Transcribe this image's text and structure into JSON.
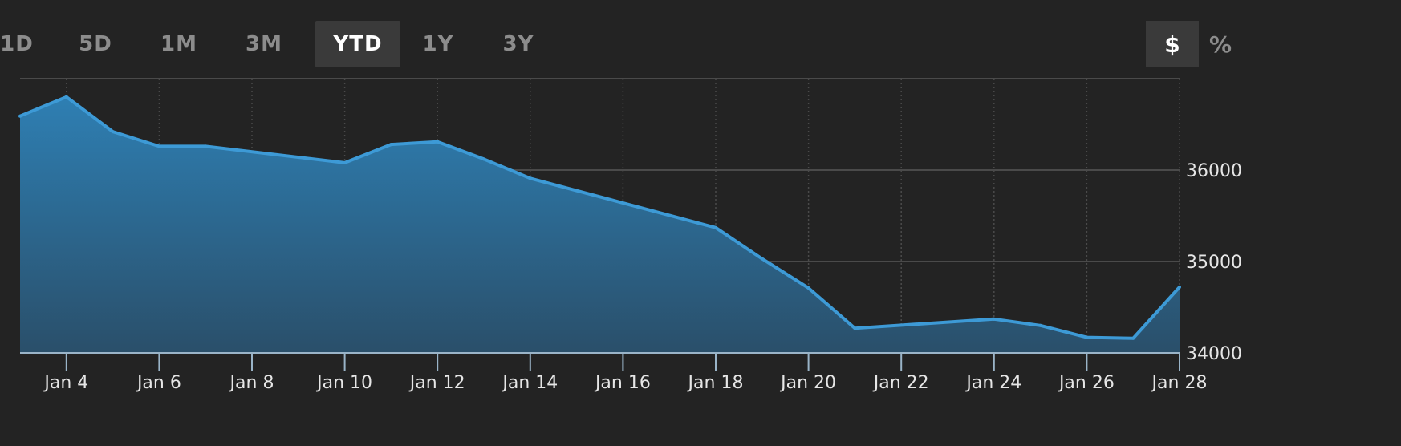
{
  "toolbar": {
    "ranges": [
      {
        "label": "1D",
        "active": false
      },
      {
        "label": "5D",
        "active": false
      },
      {
        "label": "1M",
        "active": false
      },
      {
        "label": "3M",
        "active": false
      },
      {
        "label": "YTD",
        "active": true
      },
      {
        "label": "1Y",
        "active": false
      },
      {
        "label": "3Y",
        "active": false
      }
    ],
    "units": [
      {
        "label": "$",
        "active": true
      },
      {
        "label": "%",
        "active": false
      }
    ]
  },
  "colors": {
    "background": "#232323",
    "line": "#3d9ad6",
    "fill_top": "#2e7fb3",
    "fill_bottom": "#2a4f6a",
    "grid": "#4a4a4a",
    "axis_line": "#9ab4c8"
  },
  "chart_data": {
    "type": "area",
    "title": "",
    "xlabel": "",
    "ylabel": "",
    "x_range": [
      "Jan 3",
      "Jan 28"
    ],
    "ylim": [
      34000,
      37000
    ],
    "yticks": [
      34000,
      35000,
      36000
    ],
    "xticks": [
      "Jan 4",
      "Jan 6",
      "Jan 8",
      "Jan 10",
      "Jan 12",
      "Jan 14",
      "Jan 16",
      "Jan 18",
      "Jan 20",
      "Jan 22",
      "Jan 24",
      "Jan 26",
      "Jan 28"
    ],
    "grid": true,
    "y_axis_position": "right",
    "series": [
      {
        "x": [
          "Jan 3",
          "Jan 4",
          "Jan 5",
          "Jan 6",
          "Jan 7",
          "Jan 10",
          "Jan 11",
          "Jan 12",
          "Jan 13",
          "Jan 14",
          "Jan 18",
          "Jan 19",
          "Jan 20",
          "Jan 21",
          "Jan 24",
          "Jan 25",
          "Jan 26",
          "Jan 27",
          "Jan 28"
        ],
        "values": [
          36590,
          36800,
          36420,
          36260,
          36260,
          36080,
          36280,
          36310,
          36120,
          35910,
          35370,
          35030,
          34710,
          34270,
          34370,
          34300,
          34170,
          34160,
          34720
        ]
      }
    ]
  }
}
